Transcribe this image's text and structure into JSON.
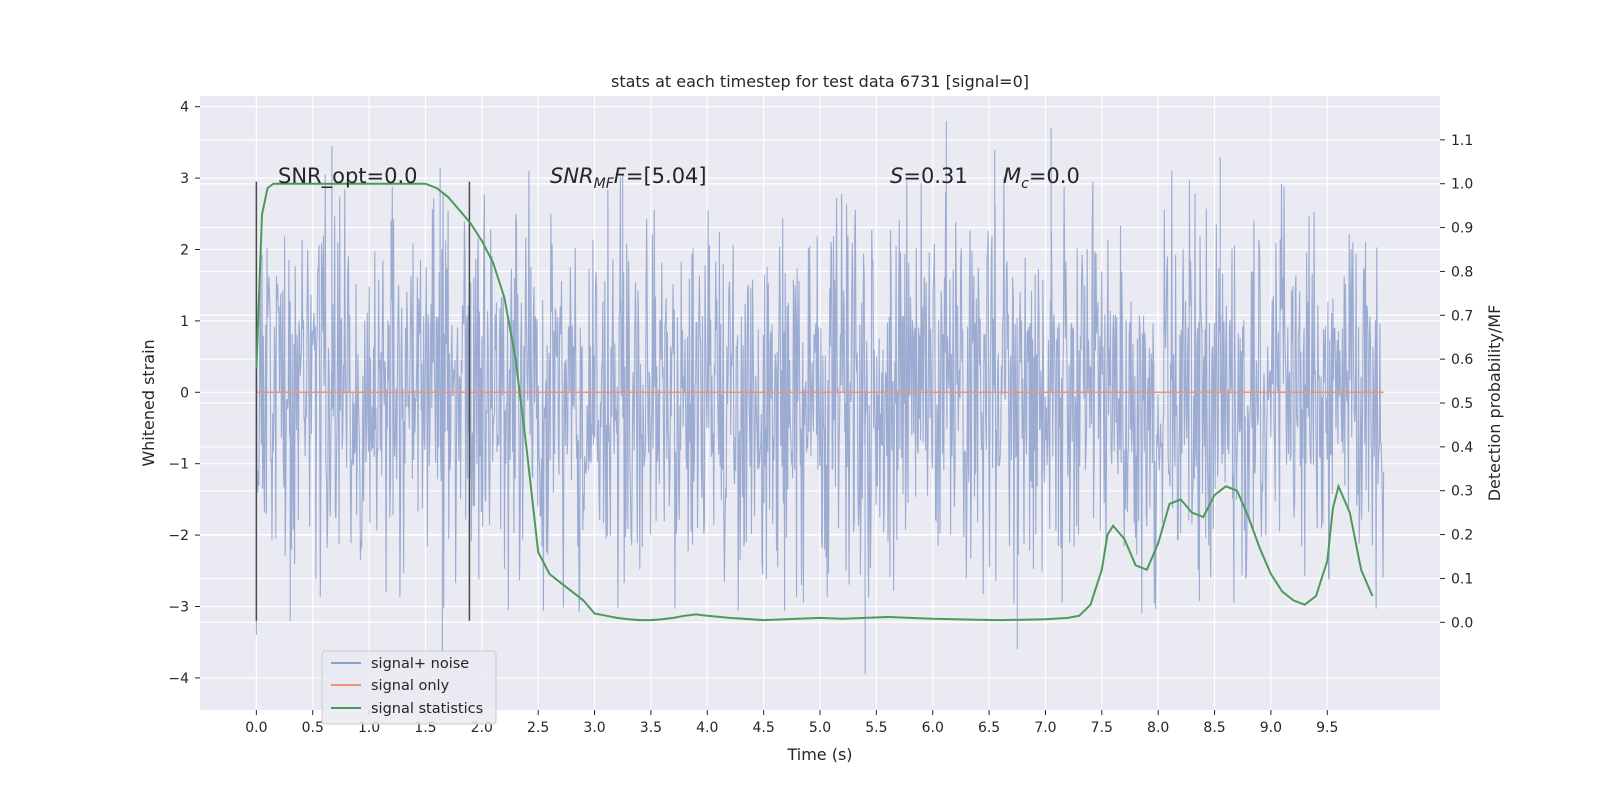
{
  "chart_data": {
    "type": "line",
    "title": "stats at each timestep for test data 6731 [signal=0]",
    "xlabel": "Time (s)",
    "ylabel_left": "Whitened strain",
    "ylabel_right": "Detection probability/MF",
    "xlim": [
      -0.5,
      10.5
    ],
    "ylim_left": [
      -4.45,
      4.15
    ],
    "ylim_right": [
      -0.2,
      1.2
    ],
    "xticks": [
      "0.0",
      "0.5",
      "1.0",
      "1.5",
      "2.0",
      "2.5",
      "3.0",
      "3.5",
      "4.0",
      "4.5",
      "5.0",
      "5.5",
      "6.0",
      "6.5",
      "7.0",
      "7.5",
      "8.0",
      "8.5",
      "9.0",
      "9.5"
    ],
    "yticks_left": [
      "4",
      "3",
      "2",
      "1",
      "0",
      "−1",
      "−2",
      "−3",
      "−4"
    ],
    "yticks_right": [
      "1.1",
      "1.0",
      "0.9",
      "0.8",
      "0.7",
      "0.6",
      "0.5",
      "0.4",
      "0.3",
      "0.2",
      "0.1",
      "0.0"
    ],
    "grid": true,
    "legend_position": "lower-left",
    "annotations": {
      "snr_opt": "SNR_opt=0.0",
      "snr_mf_label": "SNR",
      "snr_mf_sub": "MF",
      "snr_mf_value": "=[5.04]",
      "s_label": "S",
      "s_value": "=0.31",
      "mc_label": "M",
      "mc_sub": "c",
      "mc_value": "=0.0"
    },
    "vertical_markers": {
      "x": [
        0.0,
        1.89
      ],
      "ymin": -3.2,
      "ymax": 2.95,
      "color": "#4a4a4a"
    },
    "series": [
      {
        "name": "signal+ noise",
        "color": "#8da0cb",
        "axis": "left",
        "x_range": [
          0.0,
          10.0
        ],
        "envelope_upper": 2.2,
        "envelope_lower": -2.2,
        "typical_band": [
          -1.1,
          1.1
        ],
        "notable_spikes": [
          {
            "x": 0.67,
            "y": 3.45
          },
          {
            "x": 1.63,
            "y": 3.15
          },
          {
            "x": 1.65,
            "y": -3.65
          },
          {
            "x": 3.25,
            "y": 3.05
          },
          {
            "x": 6.12,
            "y": 3.8
          },
          {
            "x": 6.55,
            "y": 3.4
          },
          {
            "x": 7.05,
            "y": 3.7
          },
          {
            "x": 5.4,
            "y": -3.95
          },
          {
            "x": 6.75,
            "y": -3.6
          },
          {
            "x": 8.55,
            "y": 3.3
          },
          {
            "x": 0.0,
            "y": -3.4
          },
          {
            "x": 0.3,
            "y": -3.2
          }
        ]
      },
      {
        "name": "signal only",
        "color": "#e9967a",
        "axis": "left",
        "x": [
          0.0,
          10.0
        ],
        "values": [
          0.0,
          0.0
        ]
      },
      {
        "name": "signal statistics",
        "color": "#4c9a5a",
        "axis": "right",
        "x": [
          0.0,
          0.05,
          0.1,
          0.15,
          0.2,
          0.3,
          0.5,
          0.8,
          1.0,
          1.2,
          1.4,
          1.5,
          1.6,
          1.7,
          1.8,
          1.9,
          2.0,
          2.1,
          2.2,
          2.3,
          2.4,
          2.5,
          2.6,
          2.7,
          2.8,
          2.9,
          3.0,
          3.1,
          3.2,
          3.3,
          3.4,
          3.5,
          3.6,
          3.7,
          3.8,
          3.9,
          4.0,
          4.2,
          4.5,
          4.8,
          5.0,
          5.2,
          5.4,
          5.6,
          5.8,
          6.0,
          6.2,
          6.4,
          6.6,
          6.8,
          7.0,
          7.2,
          7.3,
          7.4,
          7.5,
          7.55,
          7.6,
          7.7,
          7.8,
          7.9,
          8.0,
          8.1,
          8.2,
          8.3,
          8.4,
          8.5,
          8.6,
          8.7,
          8.8,
          8.9,
          9.0,
          9.1,
          9.2,
          9.3,
          9.4,
          9.5,
          9.55,
          9.6,
          9.7,
          9.8,
          9.9
        ],
        "values": [
          0.58,
          0.93,
          0.99,
          1.0,
          1.0,
          1.0,
          1.0,
          1.0,
          1.0,
          1.0,
          1.0,
          1.0,
          0.99,
          0.97,
          0.94,
          0.91,
          0.87,
          0.82,
          0.74,
          0.6,
          0.39,
          0.16,
          0.11,
          0.09,
          0.07,
          0.05,
          0.02,
          0.015,
          0.01,
          0.007,
          0.005,
          0.005,
          0.007,
          0.01,
          0.015,
          0.018,
          0.015,
          0.01,
          0.005,
          0.008,
          0.01,
          0.008,
          0.01,
          0.012,
          0.01,
          0.008,
          0.007,
          0.006,
          0.005,
          0.006,
          0.007,
          0.01,
          0.015,
          0.04,
          0.12,
          0.2,
          0.22,
          0.19,
          0.13,
          0.12,
          0.18,
          0.27,
          0.28,
          0.25,
          0.24,
          0.29,
          0.31,
          0.3,
          0.24,
          0.17,
          0.11,
          0.07,
          0.05,
          0.04,
          0.06,
          0.14,
          0.26,
          0.31,
          0.25,
          0.12,
          0.06
        ]
      }
    ]
  }
}
